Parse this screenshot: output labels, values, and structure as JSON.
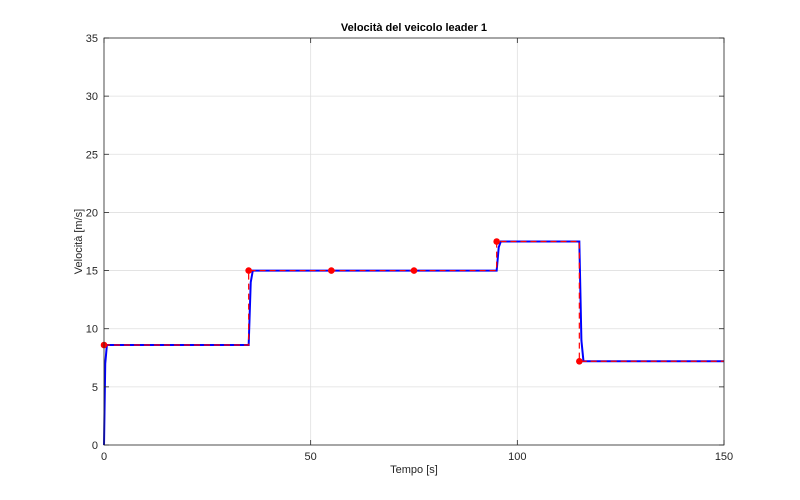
{
  "chart_data": {
    "type": "line",
    "title": "Velocità del veicolo leader 1",
    "xlabel": "Tempo [s]",
    "ylabel": "Velocità [m/s]",
    "xlim": [
      0,
      150
    ],
    "ylim": [
      0,
      35
    ],
    "xticks": [
      0,
      50,
      100,
      150
    ],
    "yticks": [
      0,
      5,
      10,
      15,
      20,
      25,
      30,
      35
    ],
    "grid": true,
    "series": [
      {
        "style": "solid",
        "color": "#0000ff",
        "x": [
          0,
          0.3,
          0.7,
          35,
          35.5,
          36,
          95,
          95.5,
          96,
          115,
          115.5,
          116,
          150
        ],
        "y": [
          0,
          7.0,
          8.6,
          8.6,
          14.0,
          15.0,
          15.0,
          17.0,
          17.5,
          17.5,
          9.0,
          7.2,
          7.2
        ]
      },
      {
        "style": "dashed",
        "color": "#ff0000",
        "x": [
          0,
          35,
          35,
          95,
          95,
          115,
          115,
          150
        ],
        "y": [
          8.6,
          8.6,
          15.0,
          15.0,
          17.5,
          17.5,
          7.2,
          7.2
        ]
      },
      {
        "style": "markers",
        "color": "#ff0000",
        "x": [
          0,
          35,
          55,
          75,
          95,
          115
        ],
        "y": [
          8.6,
          15.0,
          15.0,
          15.0,
          17.5,
          7.2
        ]
      }
    ]
  }
}
